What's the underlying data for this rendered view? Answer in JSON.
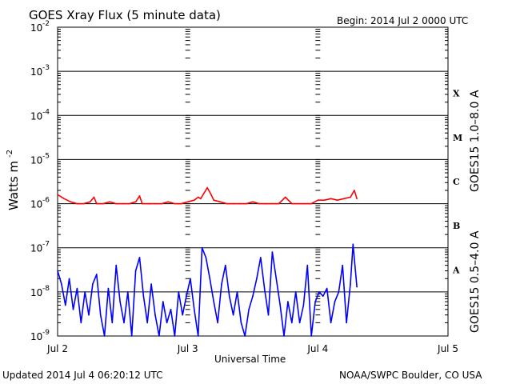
{
  "header": {
    "title": "GOES Xray Flux (5 minute data)",
    "begin": "Begin:  2014 Jul 2 0000 UTC"
  },
  "footer": {
    "updated": "Updated 2014 Jul  4 06:20:12 UTC",
    "source": "NOAA/SWPC Boulder, CO USA"
  },
  "colors": {
    "long": "#ff0000",
    "short": "#0000ff",
    "axis": "#000000"
  },
  "chart_data": {
    "type": "line",
    "title": "GOES Xray Flux (5 minute data)",
    "xlabel": "Universal Time",
    "ylabel_main": "Watts m",
    "ylabel_sup": "-2",
    "yscale": "log",
    "ylim": [
      1e-09,
      0.01
    ],
    "xlim": [
      0,
      3
    ],
    "x_unit": "days since 2014 Jul 2 0000 UTC",
    "grid": true,
    "x_ticks": [
      {
        "value": 0,
        "label": "Jul 2"
      },
      {
        "value": 1,
        "label": "Jul 3"
      },
      {
        "value": 2,
        "label": "Jul 4"
      },
      {
        "value": 3,
        "label": "Jul 5"
      }
    ],
    "y_ticks": [
      {
        "exp": -2,
        "label": "10",
        "sup": "-2"
      },
      {
        "exp": -3,
        "label": "10",
        "sup": "-3"
      },
      {
        "exp": -4,
        "label": "10",
        "sup": "-4"
      },
      {
        "exp": -5,
        "label": "10",
        "sup": "-5"
      },
      {
        "exp": -6,
        "label": "10",
        "sup": "-6"
      },
      {
        "exp": -7,
        "label": "10",
        "sup": "-7"
      },
      {
        "exp": -8,
        "label": "10",
        "sup": "-8"
      },
      {
        "exp": -9,
        "label": "10",
        "sup": "-9"
      }
    ],
    "classes": [
      {
        "label": "X",
        "exp": -3.5
      },
      {
        "label": "M",
        "exp": -4.5
      },
      {
        "label": "C",
        "exp": -5.5
      },
      {
        "label": "B",
        "exp": -6.5
      },
      {
        "label": "A",
        "exp": -7.5
      }
    ],
    "series": [
      {
        "name": "GOES15 1.0–8.0 A",
        "color": "#ff0000",
        "x": [
          0.0,
          0.05,
          0.1,
          0.15,
          0.2,
          0.25,
          0.28,
          0.3,
          0.35,
          0.4,
          0.45,
          0.5,
          0.55,
          0.6,
          0.63,
          0.65,
          0.7,
          0.75,
          0.8,
          0.85,
          0.9,
          0.93,
          0.95,
          1.0,
          1.05,
          1.08,
          1.1,
          1.15,
          1.18,
          1.2,
          1.25,
          1.3,
          1.35,
          1.4,
          1.45,
          1.5,
          1.55,
          1.6,
          1.65,
          1.7,
          1.75,
          1.8,
          1.85,
          1.9,
          1.95,
          2.0,
          2.05,
          2.1,
          2.15,
          2.2,
          2.25,
          2.28,
          2.3
        ],
        "y": [
          1.6e-06,
          1.3e-06,
          1.1e-06,
          1e-06,
          1e-06,
          1.1e-06,
          1.4e-06,
          1e-06,
          1e-06,
          1.1e-06,
          1e-06,
          1e-06,
          1e-06,
          1.1e-06,
          1.5e-06,
          1e-06,
          1e-06,
          1e-06,
          1e-06,
          1.1e-06,
          1e-06,
          1e-06,
          1e-06,
          1.1e-06,
          1.2e-06,
          1.4e-06,
          1.3e-06,
          2.3e-06,
          1.6e-06,
          1.2e-06,
          1.1e-06,
          1e-06,
          1e-06,
          1e-06,
          1e-06,
          1.1e-06,
          1e-06,
          1e-06,
          1e-06,
          1e-06,
          1.4e-06,
          1e-06,
          1e-06,
          1e-06,
          1e-06,
          1.2e-06,
          1.2e-06,
          1.3e-06,
          1.2e-06,
          1.3e-06,
          1.4e-06,
          2e-06,
          1.3e-06
        ]
      },
      {
        "name": "GOES15 0.5–4.0 A",
        "color": "#0000ff",
        "x": [
          0.0,
          0.03,
          0.06,
          0.09,
          0.12,
          0.15,
          0.18,
          0.21,
          0.24,
          0.27,
          0.3,
          0.33,
          0.36,
          0.39,
          0.42,
          0.45,
          0.48,
          0.51,
          0.54,
          0.57,
          0.6,
          0.63,
          0.66,
          0.69,
          0.72,
          0.75,
          0.78,
          0.81,
          0.84,
          0.87,
          0.9,
          0.93,
          0.96,
          0.99,
          1.02,
          1.05,
          1.08,
          1.11,
          1.14,
          1.17,
          1.2,
          1.23,
          1.26,
          1.29,
          1.32,
          1.35,
          1.38,
          1.41,
          1.44,
          1.47,
          1.5,
          1.53,
          1.56,
          1.59,
          1.62,
          1.65,
          1.68,
          1.71,
          1.74,
          1.77,
          1.8,
          1.83,
          1.86,
          1.89,
          1.92,
          1.95,
          1.98,
          2.01,
          2.04,
          2.07,
          2.1,
          2.13,
          2.16,
          2.19,
          2.22,
          2.25,
          2.27,
          2.3
        ],
        "y": [
          3e-08,
          1.5e-08,
          5e-09,
          2e-08,
          4e-09,
          1.2e-08,
          2e-09,
          1e-08,
          3e-09,
          1.5e-08,
          2.5e-08,
          3e-09,
          1e-09,
          1.2e-08,
          2e-09,
          4e-08,
          6e-09,
          2e-09,
          1e-08,
          1e-09,
          3e-08,
          6e-08,
          8e-09,
          2e-09,
          1.5e-08,
          3e-09,
          1e-09,
          6e-09,
          2e-09,
          4e-09,
          1e-09,
          1e-08,
          3e-09,
          8e-09,
          2e-08,
          4e-09,
          1e-09,
          1e-07,
          6e-08,
          2e-08,
          6e-09,
          2e-09,
          1.5e-08,
          4e-08,
          8e-09,
          3e-09,
          1e-08,
          2e-09,
          1e-09,
          4e-09,
          8e-09,
          2e-08,
          6e-08,
          1.2e-08,
          3e-09,
          8e-08,
          2e-08,
          5e-09,
          1e-09,
          6e-09,
          2e-09,
          1e-08,
          2e-09,
          5e-09,
          4e-08,
          1e-09,
          6e-09,
          1e-08,
          8e-09,
          1.2e-08,
          2e-09,
          6e-09,
          1e-08,
          4e-08,
          2e-09,
          1.5e-08,
          1.2e-07,
          1.3e-08
        ]
      }
    ]
  }
}
